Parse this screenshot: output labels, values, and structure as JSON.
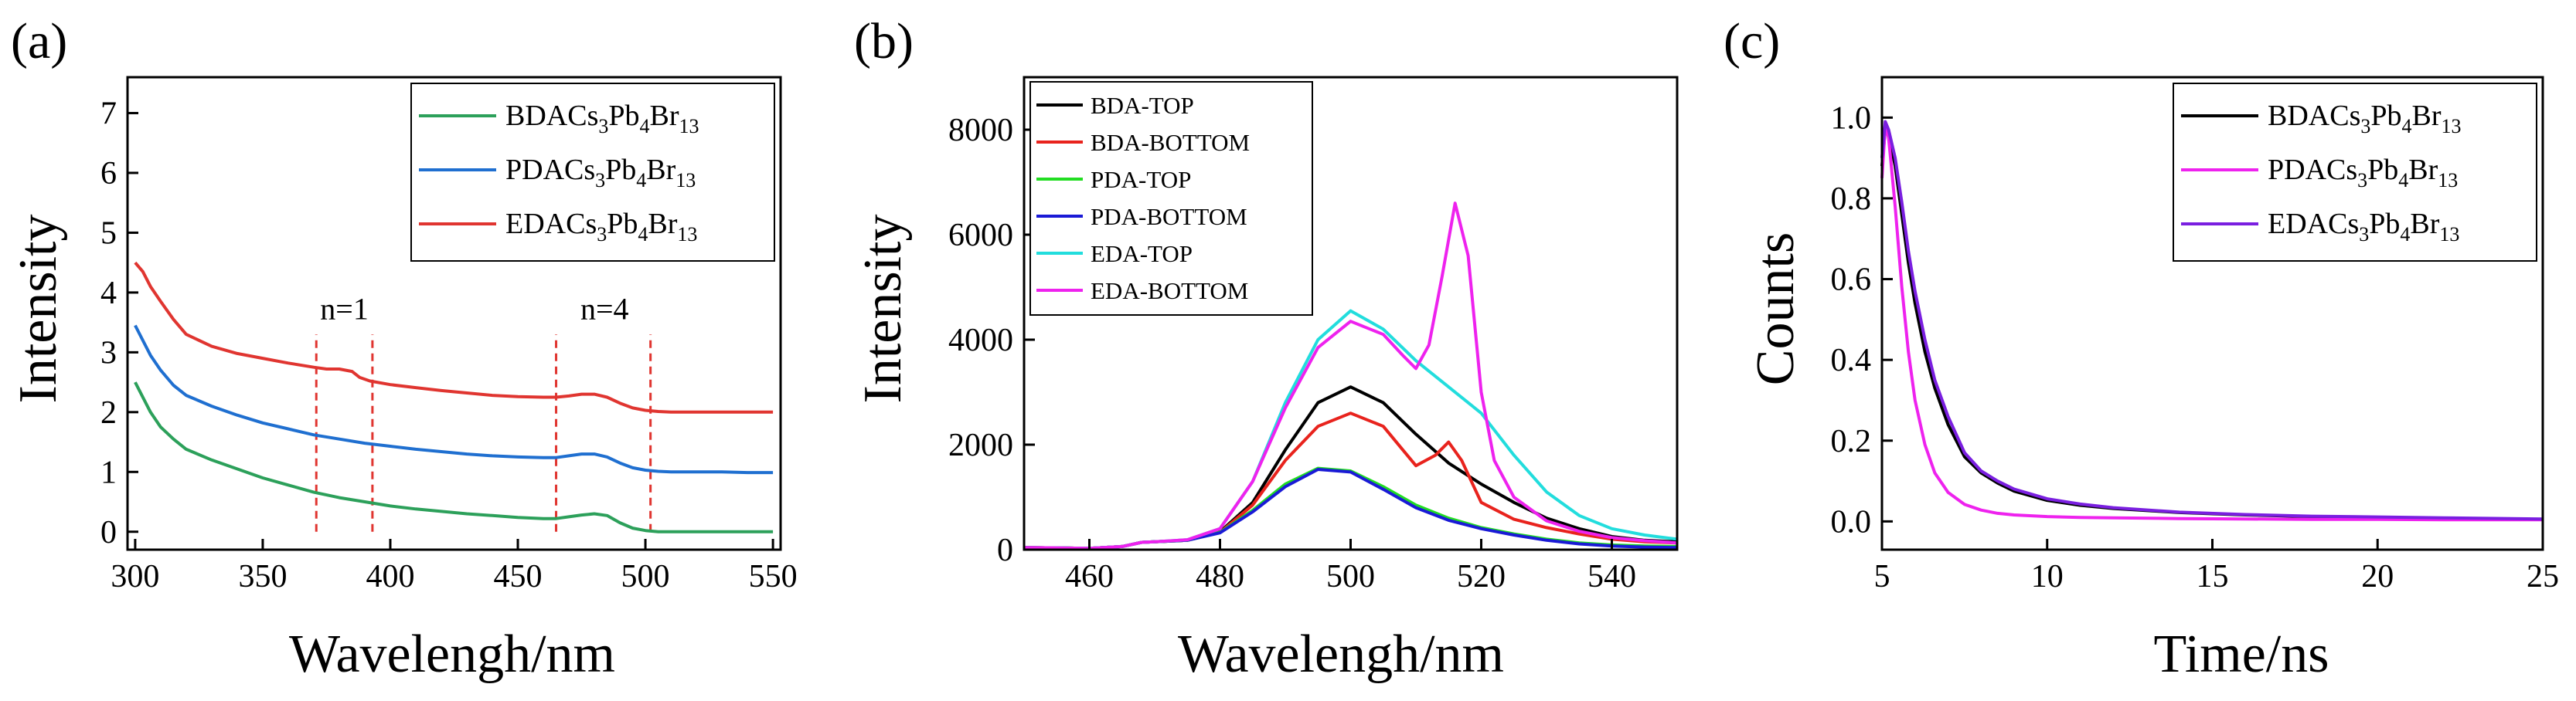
{
  "chart_data": [
    {
      "id": "a",
      "panel_label": "(a)",
      "type": "line",
      "xlabel": "Wavelengh/nm",
      "ylabel": "Intensity",
      "xlim": [
        297,
        553
      ],
      "ylim": [
        -0.3,
        7.6
      ],
      "xticks": [
        300,
        350,
        400,
        450,
        500,
        550
      ],
      "yticks": [
        0,
        1,
        2,
        3,
        4,
        5,
        6,
        7
      ],
      "legend_position": "top-right",
      "annotations": [
        {
          "text": "n=1",
          "x": 382,
          "y": 3.55
        },
        {
          "text": "n=4",
          "x": 484,
          "y": 3.55
        }
      ],
      "dashed_lines_x": [
        371,
        393,
        465,
        502
      ],
      "dashed_range_y": [
        0,
        3.3
      ],
      "series": [
        {
          "name_base": "BDACs",
          "name_sub1": "3",
          "name_mid": "Pb",
          "name_sub2": "4",
          "name_mid2": "Br",
          "name_sub3": "13",
          "color": "#2ca05a",
          "x": [
            300,
            303,
            306,
            310,
            315,
            320,
            330,
            340,
            350,
            360,
            370,
            380,
            390,
            400,
            410,
            420,
            430,
            440,
            450,
            460,
            465,
            470,
            475,
            480,
            485,
            490,
            495,
            500,
            505,
            510,
            520,
            530,
            540,
            550
          ],
          "y": [
            2.5,
            2.25,
            2.0,
            1.75,
            1.55,
            1.38,
            1.2,
            1.05,
            0.9,
            0.78,
            0.66,
            0.57,
            0.5,
            0.43,
            0.38,
            0.34,
            0.3,
            0.27,
            0.24,
            0.22,
            0.22,
            0.25,
            0.28,
            0.3,
            0.27,
            0.15,
            0.06,
            0.02,
            0.0,
            0.0,
            0.0,
            0.0,
            0.0,
            0.0
          ]
        },
        {
          "name_base": "PDACs",
          "name_sub1": "3",
          "name_mid": "Pb",
          "name_sub2": "4",
          "name_mid2": "Br",
          "name_sub3": "13",
          "color": "#1f6fd0",
          "x": [
            300,
            303,
            306,
            310,
            315,
            320,
            330,
            340,
            350,
            360,
            370,
            380,
            390,
            400,
            410,
            420,
            430,
            440,
            450,
            460,
            465,
            470,
            475,
            480,
            485,
            490,
            495,
            500,
            505,
            510,
            520,
            530,
            540,
            550
          ],
          "y": [
            3.45,
            3.2,
            2.95,
            2.7,
            2.45,
            2.28,
            2.1,
            1.95,
            1.82,
            1.72,
            1.62,
            1.55,
            1.48,
            1.43,
            1.38,
            1.34,
            1.3,
            1.27,
            1.25,
            1.24,
            1.24,
            1.27,
            1.3,
            1.3,
            1.25,
            1.15,
            1.07,
            1.03,
            1.01,
            1.0,
            1.0,
            1.0,
            0.99,
            0.99
          ]
        },
        {
          "name_base": "EDACs",
          "name_sub1": "3",
          "name_mid": "Pb",
          "name_sub2": "4",
          "name_mid2": "Br",
          "name_sub3": "13",
          "color": "#e03530",
          "x": [
            300,
            303,
            306,
            310,
            315,
            320,
            330,
            340,
            350,
            360,
            370,
            375,
            380,
            385,
            388,
            392,
            400,
            410,
            420,
            430,
            440,
            450,
            460,
            465,
            470,
            475,
            480,
            485,
            490,
            495,
            500,
            505,
            510,
            520,
            530,
            540,
            550
          ],
          "y": [
            4.5,
            4.35,
            4.1,
            3.85,
            3.55,
            3.3,
            3.1,
            2.98,
            2.9,
            2.82,
            2.75,
            2.72,
            2.72,
            2.68,
            2.58,
            2.52,
            2.46,
            2.41,
            2.36,
            2.32,
            2.28,
            2.26,
            2.25,
            2.25,
            2.27,
            2.3,
            2.3,
            2.25,
            2.15,
            2.07,
            2.03,
            2.01,
            2.0,
            2.0,
            2.0,
            2.0,
            2.0
          ]
        }
      ]
    },
    {
      "id": "b",
      "panel_label": "(b)",
      "type": "line",
      "xlabel": "Wavelengh/nm",
      "ylabel": "Intensity",
      "xlim": [
        450,
        550
      ],
      "ylim": [
        0,
        9000
      ],
      "xticks": [
        460,
        480,
        500,
        520,
        540
      ],
      "yticks": [
        0,
        2000,
        4000,
        6000,
        8000
      ],
      "legend_position": "top-left",
      "series": [
        {
          "name": "BDA-TOP",
          "color": "#000000",
          "x": [
            450,
            455,
            460,
            465,
            468,
            470,
            475,
            480,
            485,
            490,
            495,
            500,
            505,
            510,
            515,
            520,
            525,
            530,
            535,
            540,
            545,
            550
          ],
          "y": [
            40,
            35,
            25,
            60,
            140,
            150,
            180,
            340,
            900,
            1900,
            2800,
            3100,
            2800,
            2200,
            1650,
            1250,
            900,
            600,
            400,
            250,
            180,
            150
          ]
        },
        {
          "name": "BDA-BOTTOM",
          "color": "#e8231d",
          "x": [
            450,
            455,
            460,
            465,
            468,
            470,
            475,
            480,
            485,
            490,
            495,
            500,
            505,
            508,
            510,
            513,
            515,
            517,
            520,
            525,
            530,
            535,
            540,
            545,
            550
          ],
          "y": [
            40,
            35,
            25,
            60,
            140,
            150,
            180,
            330,
            850,
            1700,
            2350,
            2600,
            2350,
            1900,
            1600,
            1800,
            2050,
            1700,
            900,
            580,
            420,
            300,
            200,
            150,
            130
          ]
        },
        {
          "name": "PDA-TOP",
          "color": "#22dd22",
          "x": [
            450,
            455,
            460,
            465,
            468,
            470,
            475,
            480,
            485,
            490,
            495,
            500,
            505,
            510,
            515,
            520,
            525,
            530,
            535,
            540,
            545,
            550
          ],
          "y": [
            40,
            35,
            25,
            60,
            140,
            150,
            180,
            330,
            750,
            1250,
            1550,
            1500,
            1200,
            850,
            600,
            420,
            300,
            200,
            130,
            90,
            70,
            60
          ]
        },
        {
          "name": "PDA-BOTTOM",
          "color": "#1a1ad6",
          "x": [
            450,
            455,
            460,
            465,
            468,
            470,
            475,
            480,
            485,
            490,
            495,
            500,
            505,
            510,
            515,
            520,
            525,
            530,
            535,
            540,
            545,
            550
          ],
          "y": [
            40,
            35,
            25,
            60,
            140,
            150,
            180,
            320,
            720,
            1200,
            1530,
            1480,
            1150,
            800,
            560,
            400,
            280,
            180,
            110,
            70,
            50,
            40
          ]
        },
        {
          "name": "EDA-TOP",
          "color": "#22dddd",
          "x": [
            450,
            455,
            460,
            465,
            468,
            470,
            475,
            480,
            485,
            490,
            495,
            500,
            505,
            510,
            515,
            520,
            525,
            530,
            535,
            540,
            545,
            550
          ],
          "y": [
            40,
            35,
            25,
            60,
            140,
            150,
            190,
            400,
            1300,
            2800,
            4000,
            4550,
            4200,
            3600,
            3100,
            2600,
            1800,
            1100,
            650,
            400,
            280,
            200
          ]
        },
        {
          "name": "EDA-BOTTOM",
          "color": "#ee22ee",
          "x": [
            450,
            455,
            460,
            465,
            468,
            470,
            475,
            480,
            485,
            490,
            495,
            500,
            505,
            508,
            510,
            512,
            514,
            516,
            518,
            520,
            522,
            525,
            530,
            535,
            540,
            545,
            550
          ],
          "y": [
            40,
            35,
            25,
            60,
            140,
            150,
            190,
            400,
            1300,
            2700,
            3850,
            4350,
            4100,
            3700,
            3450,
            3900,
            5200,
            6600,
            5600,
            3000,
            1700,
            1000,
            550,
            350,
            230,
            170,
            130
          ]
        }
      ]
    },
    {
      "id": "c",
      "panel_label": "(c)",
      "type": "line",
      "xlabel": "Time/ns",
      "ylabel": "Counts",
      "xlim": [
        5,
        25
      ],
      "ylim": [
        -0.07,
        1.1
      ],
      "xticks": [
        5,
        10,
        15,
        20,
        25
      ],
      "yticks": [
        0.0,
        0.2,
        0.4,
        0.6,
        0.8,
        1.0
      ],
      "ytick_labels": [
        "0.0",
        "0.2",
        "0.4",
        "0.6",
        "0.8",
        "1.0"
      ],
      "legend_position": "top-right",
      "series": [
        {
          "name_base": "BDACs",
          "name_sub1": "3",
          "name_mid": "Pb",
          "name_sub2": "4",
          "name_mid2": "Br",
          "name_sub3": "13",
          "color": "#000000",
          "x": [
            5.0,
            5.1,
            5.2,
            5.4,
            5.6,
            5.8,
            6.0,
            6.3,
            6.6,
            7.0,
            7.5,
            8.0,
            8.5,
            9.0,
            10.0,
            11.0,
            12.0,
            14.0,
            16.0,
            18.0,
            20.0,
            22.0,
            25.0
          ],
          "y": [
            0.88,
            0.97,
            0.96,
            0.88,
            0.76,
            0.64,
            0.54,
            0.42,
            0.33,
            0.24,
            0.16,
            0.12,
            0.095,
            0.075,
            0.052,
            0.04,
            0.032,
            0.022,
            0.016,
            0.012,
            0.01,
            0.008,
            0.005
          ]
        },
        {
          "name_base": "PDACs",
          "name_sub1": "3",
          "name_mid": "Pb",
          "name_sub2": "4",
          "name_mid2": "Br",
          "name_sub3": "13",
          "color": "#ee22ee",
          "x": [
            5.0,
            5.1,
            5.2,
            5.4,
            5.6,
            5.8,
            6.0,
            6.3,
            6.6,
            7.0,
            7.5,
            8.0,
            8.5,
            9.0,
            10.0,
            11.0,
            12.0,
            14.0,
            16.0,
            18.0,
            20.0,
            22.0,
            25.0
          ],
          "y": [
            0.85,
            0.98,
            0.95,
            0.78,
            0.58,
            0.42,
            0.3,
            0.19,
            0.12,
            0.072,
            0.042,
            0.028,
            0.02,
            0.016,
            0.012,
            0.01,
            0.009,
            0.007,
            0.006,
            0.005,
            0.005,
            0.004,
            0.004
          ]
        },
        {
          "name_base": "EDACs",
          "name_sub1": "3",
          "name_mid": "Pb",
          "name_sub2": "4",
          "name_mid2": "Br",
          "name_sub3": "13",
          "color": "#7a1fe0",
          "x": [
            5.0,
            5.1,
            5.2,
            5.4,
            5.6,
            5.8,
            6.0,
            6.3,
            6.6,
            7.0,
            7.5,
            8.0,
            8.5,
            9.0,
            10.0,
            11.0,
            12.0,
            14.0,
            16.0,
            18.0,
            20.0,
            22.0,
            25.0
          ],
          "y": [
            0.9,
            0.99,
            0.97,
            0.9,
            0.79,
            0.67,
            0.57,
            0.45,
            0.35,
            0.26,
            0.17,
            0.125,
            0.1,
            0.08,
            0.056,
            0.043,
            0.034,
            0.023,
            0.017,
            0.013,
            0.011,
            0.009,
            0.006
          ]
        }
      ]
    }
  ]
}
